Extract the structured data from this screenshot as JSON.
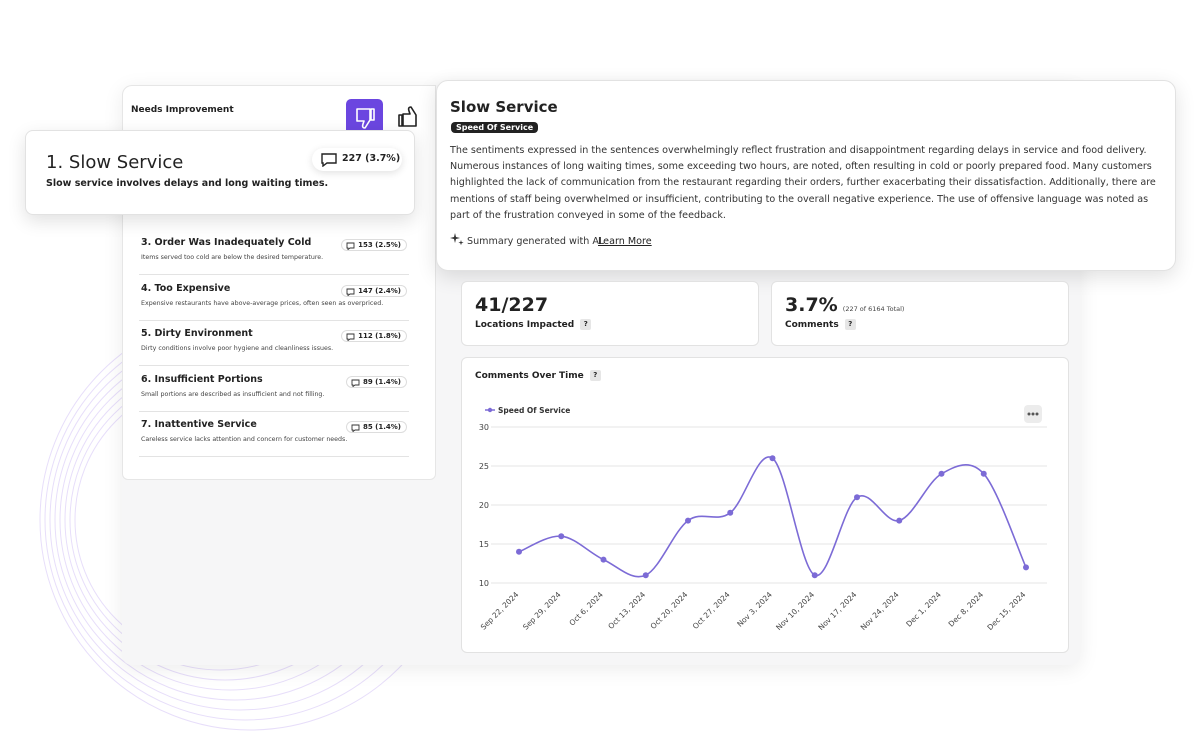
{
  "list": {
    "title": "Needs Improvement",
    "items": [
      {
        "title": "1. Slow Service",
        "count": "227 (3.7%)",
        "description": "Slow service involves delays and long waiting times."
      },
      {
        "title": "3. Order Was Inadequately Cold",
        "count": "153 (2.5%)",
        "description": "Items served too cold are below the desired temperature."
      },
      {
        "title": "4. Too Expensive",
        "count": "147 (2.4%)",
        "description": "Expensive restaurants have above-average prices, often seen as overpriced."
      },
      {
        "title": "5. Dirty Environment",
        "count": "112 (1.8%)",
        "description": "Dirty conditions involve poor hygiene and cleanliness issues."
      },
      {
        "title": "6. Insufficient Portions",
        "count": "89 (1.4%)",
        "description": "Small portions are described as insufficient and not filling."
      },
      {
        "title": "7. Inattentive Service",
        "count": "85 (1.4%)",
        "description": "Careless service lacks attention and concern for customer needs."
      }
    ]
  },
  "summary": {
    "title": "Slow Service",
    "tag": "Speed Of Service",
    "text": "The sentiments expressed in the sentences overwhelmingly reflect frustration and disappointment regarding delays in service and food delivery. Numerous instances of long waiting times, some exceeding two hours, are noted, often resulting in cold or poorly prepared food. Many customers highlighted the lack of communication from the restaurant regarding their orders, further exacerbating their dissatisfaction. Additionally, there are mentions of staff being overwhelmed or insufficient, contributing to the overall negative experience. The use of offensive language was noted as part of the frustration conveyed in some of the feedback.",
    "ai_note": "Summary generated with AI.",
    "link": "Learn More"
  },
  "help_icon": "?",
  "stats": [
    {
      "value": "41/227",
      "label": "Locations Impacted"
    },
    {
      "value": "3.7%",
      "note": "(227 of 6164 Total)",
      "label": "Comments"
    }
  ],
  "chart_data": {
    "type": "line",
    "title": "Comments Over Time",
    "categories": [
      "Sep 22, 2024",
      "Sep 29, 2024",
      "Oct 6, 2024",
      "Oct 13, 2024",
      "Oct 20, 2024",
      "Oct 27, 2024",
      "Nov 3, 2024",
      "Nov 10, 2024",
      "Nov 17, 2024",
      "Nov 24, 2024",
      "Dec 1, 2024",
      "Dec 8, 2024",
      "Dec 15, 2024"
    ],
    "series": [
      {
        "name": "Speed Of Service",
        "color": "#7c6bd6",
        "values": [
          14,
          16,
          13,
          11,
          18,
          19,
          26,
          11,
          21,
          18,
          24,
          24,
          12
        ]
      }
    ],
    "ylim": [
      10,
      30
    ],
    "yticks": [
      10,
      15,
      20,
      25,
      30
    ],
    "grid": true,
    "legend": "top-left"
  }
}
